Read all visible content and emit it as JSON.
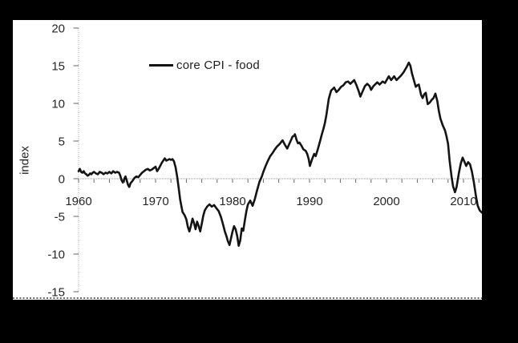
{
  "window": {
    "kind": "chart screenshot on black slide background"
  },
  "colors": {
    "background": "#000000",
    "panel": "#ffffff",
    "series": "#141414",
    "axis_line_gray": "#a6a6a6",
    "tick_gray": "#666666",
    "label_text": "#262626",
    "bottom_border": "#111111"
  },
  "chart_data": {
    "type": "line",
    "title": "",
    "ylabel": "index",
    "xlabel": "",
    "grid": "off",
    "legend": {
      "position": "top-center-left",
      "entries": [
        "core CPI - food"
      ]
    },
    "x_axis": {
      "min": 1960,
      "max": 2012.5,
      "tick_labels": [
        "1960",
        "1970",
        "1980",
        "1990",
        "2000",
        "2010"
      ],
      "tick_label_years": [
        1960,
        1970,
        1980,
        1990,
        2000,
        2010
      ],
      "minor_tick_step_years": 2,
      "minor_tick_start": 1960,
      "minor_tick_end": 2012,
      "axis_at_value": 0
    },
    "y_axis": {
      "min": -15,
      "max": 20,
      "tick_labels": [
        "20",
        "15",
        "10",
        "5",
        "0",
        "-5",
        "-10",
        "-15"
      ],
      "tick_values": [
        20,
        15,
        10,
        5,
        0,
        -5,
        -10,
        -15
      ]
    },
    "series": [
      {
        "name": "core CPI - food",
        "color": "#141414",
        "points": [
          [
            1960.0,
            1.0
          ],
          [
            1960.17,
            1.3
          ],
          [
            1960.33,
            0.9
          ],
          [
            1960.5,
            0.8
          ],
          [
            1960.67,
            1.0
          ],
          [
            1960.83,
            0.7
          ],
          [
            1961.0,
            0.6
          ],
          [
            1961.17,
            0.4
          ],
          [
            1961.33,
            0.5
          ],
          [
            1961.5,
            0.7
          ],
          [
            1961.67,
            0.6
          ],
          [
            1961.83,
            0.8
          ],
          [
            1962.0,
            0.9
          ],
          [
            1962.25,
            0.7
          ],
          [
            1962.5,
            0.6
          ],
          [
            1962.75,
            0.9
          ],
          [
            1963.0,
            0.8
          ],
          [
            1963.25,
            0.6
          ],
          [
            1963.5,
            0.8
          ],
          [
            1963.75,
            0.7
          ],
          [
            1964.0,
            0.9
          ],
          [
            1964.25,
            0.7
          ],
          [
            1964.5,
            1.0
          ],
          [
            1964.75,
            0.8
          ],
          [
            1965.0,
            0.9
          ],
          [
            1965.25,
            0.8
          ],
          [
            1965.42,
            0.4
          ],
          [
            1965.58,
            -0.2
          ],
          [
            1965.75,
            -0.5
          ],
          [
            1965.92,
            -0.1
          ],
          [
            1966.08,
            0.3
          ],
          [
            1966.25,
            -0.2
          ],
          [
            1966.42,
            -0.8
          ],
          [
            1966.58,
            -1.1
          ],
          [
            1966.75,
            -0.6
          ],
          [
            1967.0,
            -0.3
          ],
          [
            1967.25,
            0.1
          ],
          [
            1967.5,
            0.3
          ],
          [
            1967.75,
            0.2
          ],
          [
            1968.0,
            0.5
          ],
          [
            1968.25,
            0.8
          ],
          [
            1968.5,
            1.0
          ],
          [
            1968.75,
            1.2
          ],
          [
            1969.0,
            1.3
          ],
          [
            1969.25,
            1.1
          ],
          [
            1969.5,
            1.2
          ],
          [
            1969.75,
            1.4
          ],
          [
            1970.0,
            1.6
          ],
          [
            1970.2,
            1.0
          ],
          [
            1970.4,
            1.3
          ],
          [
            1970.6,
            1.7
          ],
          [
            1970.8,
            2.1
          ],
          [
            1971.0,
            2.4
          ],
          [
            1971.2,
            2.7
          ],
          [
            1971.4,
            2.4
          ],
          [
            1971.6,
            2.5
          ],
          [
            1971.8,
            2.6
          ],
          [
            1972.0,
            2.5
          ],
          [
            1972.2,
            2.6
          ],
          [
            1972.4,
            2.3
          ],
          [
            1972.6,
            1.5
          ],
          [
            1972.8,
            0.3
          ],
          [
            1973.0,
            -1.2
          ],
          [
            1973.2,
            -2.8
          ],
          [
            1973.5,
            -4.4
          ],
          [
            1973.8,
            -4.9
          ],
          [
            1974.0,
            -5.4
          ],
          [
            1974.2,
            -6.4
          ],
          [
            1974.4,
            -7.0
          ],
          [
            1974.6,
            -6.2
          ],
          [
            1974.8,
            -5.3
          ],
          [
            1975.0,
            -5.9
          ],
          [
            1975.2,
            -6.7
          ],
          [
            1975.4,
            -5.7
          ],
          [
            1975.6,
            -6.3
          ],
          [
            1975.8,
            -7.0
          ],
          [
            1976.0,
            -6.0
          ],
          [
            1976.2,
            -4.9
          ],
          [
            1976.4,
            -4.2
          ],
          [
            1976.7,
            -3.7
          ],
          [
            1977.0,
            -3.4
          ],
          [
            1977.3,
            -3.7
          ],
          [
            1977.6,
            -3.5
          ],
          [
            1977.9,
            -3.9
          ],
          [
            1978.2,
            -4.3
          ],
          [
            1978.5,
            -5.1
          ],
          [
            1978.8,
            -6.2
          ],
          [
            1979.0,
            -7.0
          ],
          [
            1979.2,
            -7.6
          ],
          [
            1979.4,
            -8.3
          ],
          [
            1979.6,
            -8.8
          ],
          [
            1979.8,
            -7.9
          ],
          [
            1980.0,
            -7.0
          ],
          [
            1980.2,
            -6.3
          ],
          [
            1980.4,
            -6.7
          ],
          [
            1980.6,
            -7.6
          ],
          [
            1980.8,
            -8.9
          ],
          [
            1981.0,
            -8.2
          ],
          [
            1981.2,
            -6.6
          ],
          [
            1981.4,
            -6.9
          ],
          [
            1981.6,
            -5.5
          ],
          [
            1981.8,
            -4.3
          ],
          [
            1982.0,
            -3.4
          ],
          [
            1982.3,
            -2.9
          ],
          [
            1982.6,
            -3.6
          ],
          [
            1982.9,
            -2.7
          ],
          [
            1983.2,
            -1.5
          ],
          [
            1983.5,
            -0.4
          ],
          [
            1983.8,
            0.3
          ],
          [
            1984.0,
            0.9
          ],
          [
            1984.3,
            1.7
          ],
          [
            1984.6,
            2.4
          ],
          [
            1984.9,
            3.0
          ],
          [
            1985.2,
            3.4
          ],
          [
            1985.5,
            3.9
          ],
          [
            1985.8,
            4.3
          ],
          [
            1986.1,
            4.6
          ],
          [
            1986.5,
            5.1
          ],
          [
            1986.8,
            4.5
          ],
          [
            1987.1,
            4.0
          ],
          [
            1987.5,
            4.9
          ],
          [
            1987.8,
            5.6
          ],
          [
            1988.0,
            5.7
          ],
          [
            1988.1,
            5.9
          ],
          [
            1988.3,
            5.2
          ],
          [
            1988.5,
            4.7
          ],
          [
            1988.7,
            4.8
          ],
          [
            1989.0,
            4.3
          ],
          [
            1989.2,
            3.9
          ],
          [
            1989.5,
            3.7
          ],
          [
            1989.7,
            3.3
          ],
          [
            1989.9,
            2.6
          ],
          [
            1990.05,
            1.7
          ],
          [
            1990.3,
            2.5
          ],
          [
            1990.6,
            3.3
          ],
          [
            1990.8,
            3.0
          ],
          [
            1991.1,
            4.0
          ],
          [
            1991.4,
            5.1
          ],
          [
            1991.6,
            5.9
          ],
          [
            1991.8,
            6.6
          ],
          [
            1992.0,
            7.4
          ],
          [
            1992.2,
            8.5
          ],
          [
            1992.5,
            10.6
          ],
          [
            1992.8,
            11.7
          ],
          [
            1993.2,
            12.1
          ],
          [
            1993.5,
            11.5
          ],
          [
            1993.8,
            11.8
          ],
          [
            1994.1,
            12.2
          ],
          [
            1994.4,
            12.4
          ],
          [
            1994.7,
            12.8
          ],
          [
            1995.0,
            12.9
          ],
          [
            1995.3,
            12.6
          ],
          [
            1995.8,
            13.1
          ],
          [
            1996.1,
            12.4
          ],
          [
            1996.4,
            11.6
          ],
          [
            1996.6,
            10.9
          ],
          [
            1996.9,
            11.6
          ],
          [
            1997.2,
            12.3
          ],
          [
            1997.5,
            12.6
          ],
          [
            1997.8,
            12.3
          ],
          [
            1998.0,
            11.8
          ],
          [
            1998.3,
            12.3
          ],
          [
            1998.8,
            12.8
          ],
          [
            1999.1,
            12.5
          ],
          [
            1999.5,
            12.9
          ],
          [
            1999.8,
            12.7
          ],
          [
            2000.3,
            13.6
          ],
          [
            2000.6,
            13.1
          ],
          [
            2001.0,
            13.6
          ],
          [
            2001.3,
            13.1
          ],
          [
            2001.6,
            13.4
          ],
          [
            2001.9,
            13.7
          ],
          [
            2002.2,
            14.1
          ],
          [
            2002.6,
            14.8
          ],
          [
            2002.9,
            15.4
          ],
          [
            2003.1,
            15.0
          ],
          [
            2003.3,
            14.0
          ],
          [
            2003.6,
            12.9
          ],
          [
            2003.8,
            12.2
          ],
          [
            2004.0,
            12.4
          ],
          [
            2004.2,
            12.5
          ],
          [
            2004.5,
            11.1
          ],
          [
            2004.7,
            10.7
          ],
          [
            2004.9,
            11.2
          ],
          [
            2005.1,
            11.4
          ],
          [
            2005.35,
            9.9
          ],
          [
            2005.6,
            10.1
          ],
          [
            2005.9,
            10.5
          ],
          [
            2006.1,
            10.7
          ],
          [
            2006.35,
            11.3
          ],
          [
            2006.6,
            10.3
          ],
          [
            2006.8,
            9.0
          ],
          [
            2007.0,
            8.0
          ],
          [
            2007.3,
            7.1
          ],
          [
            2007.6,
            6.4
          ],
          [
            2007.8,
            5.6
          ],
          [
            2008.0,
            4.6
          ],
          [
            2008.2,
            2.4
          ],
          [
            2008.45,
            0.3
          ],
          [
            2008.65,
            -1.0
          ],
          [
            2008.9,
            -1.8
          ],
          [
            2009.1,
            -1.1
          ],
          [
            2009.4,
            0.7
          ],
          [
            2009.65,
            2.0
          ],
          [
            2009.9,
            2.8
          ],
          [
            2010.1,
            2.3
          ],
          [
            2010.35,
            1.7
          ],
          [
            2010.6,
            2.2
          ],
          [
            2010.85,
            1.9
          ],
          [
            2011.1,
            0.9
          ],
          [
            2011.35,
            -0.5
          ],
          [
            2011.6,
            -2.2
          ],
          [
            2011.85,
            -3.6
          ],
          [
            2012.1,
            -4.2
          ],
          [
            2012.4,
            -4.5
          ]
        ]
      }
    ]
  }
}
